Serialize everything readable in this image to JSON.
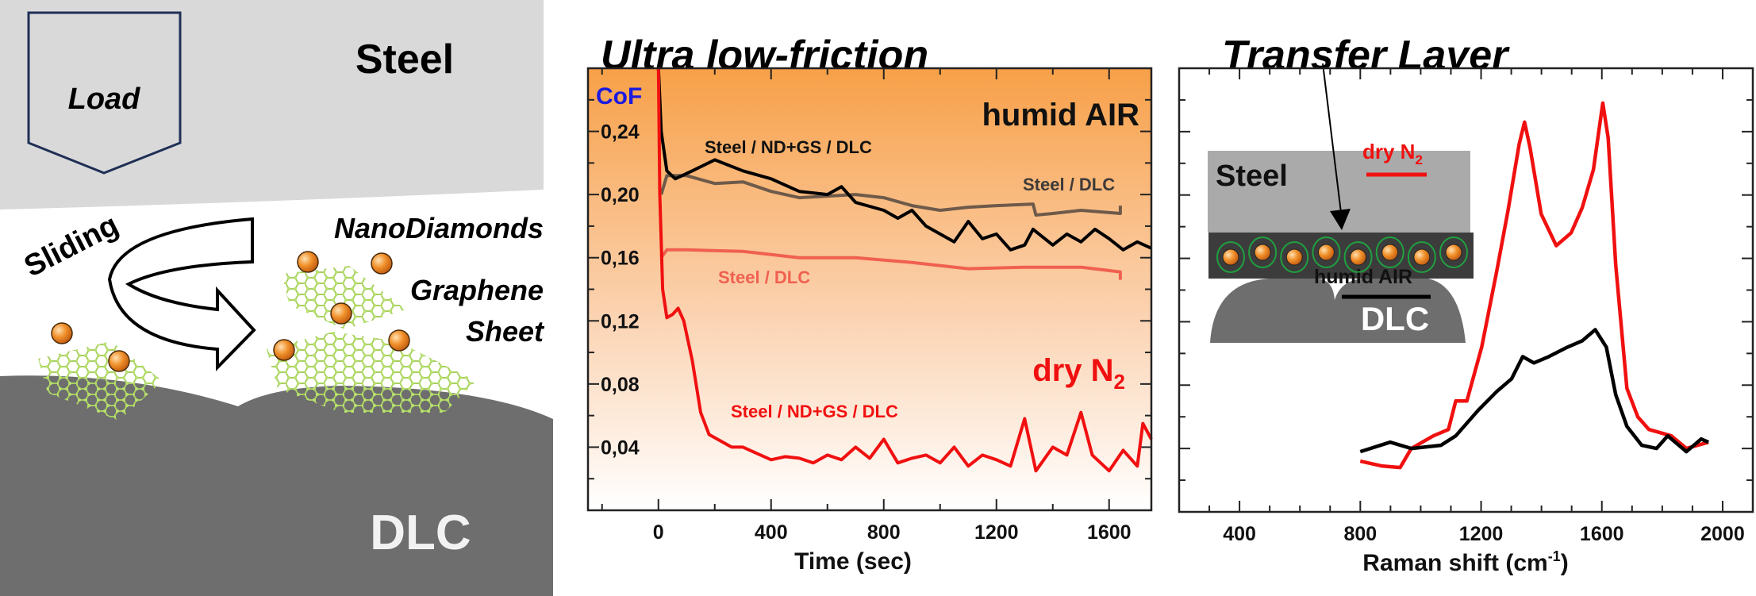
{
  "diagram": {
    "load_label": "Load",
    "steel_label": "Steel",
    "sliding_label": "Sliding",
    "nanodiamonds_label": "NanoDiamonds",
    "graphene_label": "Graphene",
    "sheet_label": "Sheet",
    "dlc_label": "DLC",
    "colors": {
      "steel": "#d9d9d9",
      "dlc": "#6e6e6e",
      "nanodiamond": "#f0902a",
      "graphene": "#a8d060",
      "load_outline": "#1f2f55"
    }
  },
  "titles": {
    "left_chart": "Ultra low-friction",
    "right_chart": "Transfer Layer"
  },
  "inset": {
    "steel_label": "Steel",
    "dlc_label": "DLC",
    "nanodiamond_count": 8
  },
  "chart_data": [
    {
      "type": "line",
      "ylabel": "CoF",
      "xlabel": "Time (sec)",
      "xlim": [
        -250,
        1750
      ],
      "ylim": [
        0,
        0.28
      ],
      "x_ticks": [
        0,
        400,
        800,
        1200,
        1600
      ],
      "x_tick_labels": [
        "0",
        "400",
        "800",
        "1200",
        "1600"
      ],
      "y_ticks": [
        0.04,
        0.08,
        0.12,
        0.16,
        0.2,
        0.24
      ],
      "y_tick_labels": [
        "0,04",
        "0,08",
        "0,12",
        "0,16",
        "0,20",
        "0,24"
      ],
      "background": "orange-to-white vertical gradient",
      "group_labels": {
        "humid": "humid AIR",
        "dry_main": "dry N",
        "dry_sub": "2"
      },
      "colors": {
        "ylabel": "#1a1ae0",
        "humid_label": "#111111",
        "dry_label": "#f01010"
      },
      "series": [
        {
          "name": "Steel / DLC",
          "group": "humid AIR",
          "color": "#6e5a4a",
          "x": [
            10,
            30,
            100,
            200,
            300,
            400,
            500,
            600,
            700,
            800,
            900,
            1000,
            1100,
            1200,
            1330,
            1340,
            1400,
            1500,
            1640,
            1640
          ],
          "y": [
            0.2,
            0.212,
            0.212,
            0.207,
            0.208,
            0.202,
            0.198,
            0.199,
            0.2,
            0.198,
            0.193,
            0.19,
            0.192,
            0.193,
            0.194,
            0.187,
            0.188,
            0.19,
            0.188,
            0.193
          ]
        },
        {
          "name": "Steel / ND+GS / DLC",
          "group": "humid AIR",
          "color": "#000000",
          "x": [
            0,
            10,
            30,
            60,
            120,
            200,
            300,
            400,
            500,
            600,
            650,
            700,
            800,
            850,
            900,
            950,
            1000,
            1050,
            1100,
            1150,
            1200,
            1250,
            1300,
            1330,
            1400,
            1450,
            1500,
            1550,
            1600,
            1650,
            1700,
            1750
          ],
          "y": [
            0.28,
            0.24,
            0.215,
            0.21,
            0.215,
            0.222,
            0.215,
            0.21,
            0.202,
            0.2,
            0.205,
            0.195,
            0.19,
            0.185,
            0.19,
            0.18,
            0.175,
            0.17,
            0.183,
            0.172,
            0.175,
            0.165,
            0.168,
            0.178,
            0.168,
            0.175,
            0.17,
            0.178,
            0.172,
            0.165,
            0.17,
            0.166
          ]
        },
        {
          "name": "Steel / DLC",
          "group": "dry N2",
          "color": "#f06050",
          "x": [
            10,
            30,
            100,
            300,
            500,
            700,
            900,
            1100,
            1300,
            1500,
            1640,
            1640
          ],
          "y": [
            0.16,
            0.165,
            0.165,
            0.164,
            0.16,
            0.16,
            0.157,
            0.153,
            0.154,
            0.154,
            0.151,
            0.146
          ]
        },
        {
          "name": "Steel / ND+GS / DLC",
          "group": "dry N2",
          "color": "#f01010",
          "x": [
            0,
            5,
            15,
            30,
            50,
            70,
            90,
            120,
            150,
            180,
            220,
            260,
            300,
            350,
            400,
            450,
            500,
            550,
            600,
            650,
            700,
            750,
            800,
            850,
            900,
            950,
            1000,
            1050,
            1100,
            1150,
            1200,
            1250,
            1300,
            1340,
            1400,
            1450,
            1500,
            1540,
            1600,
            1650,
            1700,
            1720,
            1750
          ],
          "y": [
            0.28,
            0.2,
            0.14,
            0.122,
            0.124,
            0.128,
            0.12,
            0.095,
            0.062,
            0.048,
            0.044,
            0.04,
            0.04,
            0.036,
            0.032,
            0.034,
            0.033,
            0.03,
            0.035,
            0.032,
            0.04,
            0.033,
            0.045,
            0.03,
            0.033,
            0.035,
            0.03,
            0.04,
            0.028,
            0.035,
            0.032,
            0.028,
            0.058,
            0.025,
            0.04,
            0.035,
            0.062,
            0.035,
            0.025,
            0.038,
            0.028,
            0.055,
            0.045
          ]
        }
      ]
    },
    {
      "type": "line",
      "xlabel_main": "Raman shift (cm",
      "xlabel_sup": "-1",
      "xlabel_end": ")",
      "xlim": [
        200,
        2100
      ],
      "ylim": [
        0,
        14
      ],
      "x_ticks": [
        400,
        800,
        1200,
        1600,
        2000
      ],
      "x_tick_labels": [
        "400",
        "800",
        "1200",
        "1600",
        "2000"
      ],
      "y_tick_labels_shown": false,
      "legend": {
        "position": "right",
        "dry_main": "dry N",
        "dry_sub": "2",
        "humid": "humid AIR"
      },
      "series": [
        {
          "name": "dry N2",
          "color": "#f01010",
          "x": [
            800,
            870,
            932,
            969,
            1042,
            1092,
            1116,
            1153,
            1202,
            1252,
            1289,
            1326,
            1344,
            1362,
            1399,
            1449,
            1498,
            1535,
            1572,
            1603,
            1621,
            1646,
            1683,
            1719,
            1756,
            1830,
            1880,
            1953
          ],
          "y": [
            1.6,
            1.45,
            1.4,
            2.0,
            2.4,
            2.6,
            3.5,
            3.5,
            5.2,
            7.6,
            9.5,
            11.6,
            12.3,
            11.5,
            9.4,
            8.4,
            8.8,
            9.6,
            10.8,
            12.9,
            11.8,
            7.8,
            3.9,
            3.0,
            2.6,
            2.4,
            2.0,
            2.2
          ]
        },
        {
          "name": "humid AIR",
          "color": "#000000",
          "x": [
            800,
            899,
            969,
            1067,
            1116,
            1190,
            1252,
            1301,
            1338,
            1375,
            1424,
            1486,
            1535,
            1578,
            1615,
            1646,
            1683,
            1732,
            1781,
            1818,
            1880,
            1929,
            1953
          ],
          "y": [
            1.9,
            2.2,
            2.0,
            2.1,
            2.4,
            3.2,
            3.8,
            4.2,
            4.9,
            4.7,
            4.9,
            5.2,
            5.4,
            5.75,
            5.2,
            3.7,
            2.7,
            2.1,
            2.0,
            2.4,
            1.9,
            2.3,
            2.2
          ]
        }
      ]
    }
  ]
}
